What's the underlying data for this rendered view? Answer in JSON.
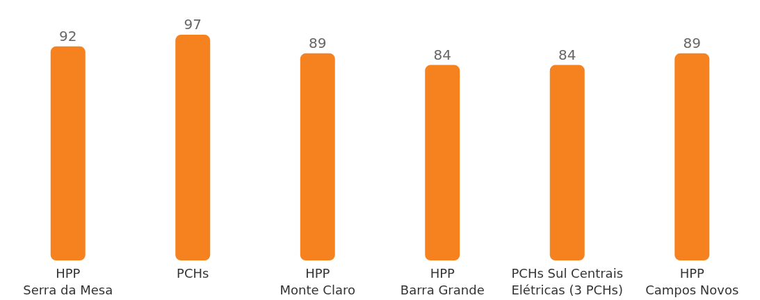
{
  "chart_data": {
    "type": "bar",
    "categories": [
      "HPP\nSerra da Mesa",
      "PCHs",
      "HPP\nMonte Claro",
      "HPP\nBarra Grande",
      "PCHs Sul Centrais\nElétricas (3 PCHs)",
      "HPP\nCampos Novos"
    ],
    "values": [
      92,
      97,
      89,
      84,
      84,
      89
    ],
    "color": "#f5821f",
    "data_labels": true
  }
}
